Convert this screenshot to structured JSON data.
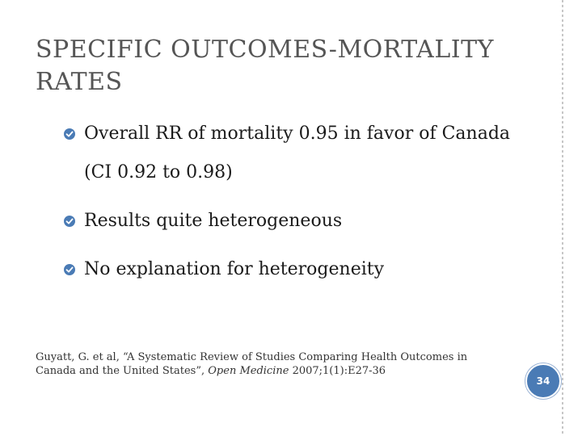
{
  "slide": {
    "title": "SPECIFIC OUTCOMES-MORTALITY RATES",
    "bullets": [
      {
        "text": "Overall RR of mortality 0.95 in favor of Canada (CI 0.92 to 0.98)",
        "icon": "circle-check-bullet-icon"
      },
      {
        "text": "Results quite heterogeneous",
        "icon": "circle-check-bullet-icon"
      },
      {
        "text": "No explanation for heterogeneity",
        "icon": "circle-check-bullet-icon"
      }
    ],
    "citation": {
      "before_journal": "Guyatt, G. et al, “A Systematic Review of Studies Comparing Health Outcomes in Canada and the United States”, ",
      "journal": "Open Medicine",
      "after_journal": " 2007;1(1):E27-36"
    },
    "page_number": "34"
  },
  "colors": {
    "title": "#555555",
    "body_text": "#1a1a1a",
    "bullet_icon": "#4a7bb5",
    "page_badge": "#4a7bb5"
  }
}
